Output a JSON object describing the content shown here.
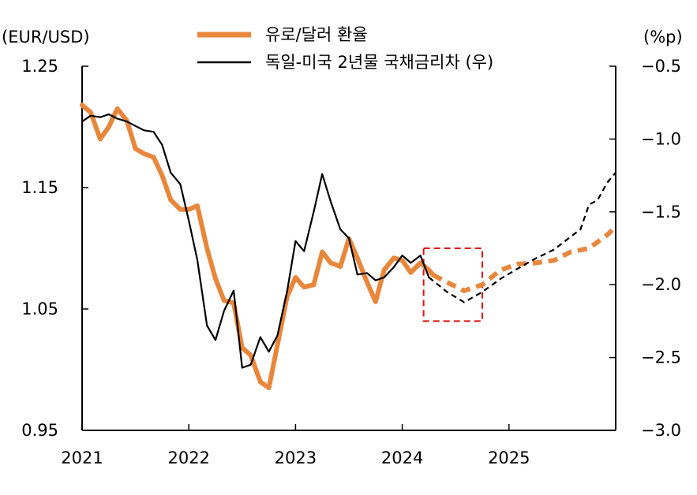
{
  "chart_data": {
    "type": "line",
    "left_axis_unit": "(EUR/USD)",
    "right_axis_unit": "(%p)",
    "left_ticks": [
      "1.25",
      "1.15",
      "1.05",
      "0.95"
    ],
    "right_ticks": [
      "-0.5",
      "-1.0",
      "-1.5",
      "-2.0",
      "-2.5",
      "-3.0"
    ],
    "x_ticks": [
      "2021",
      "2022",
      "2023",
      "2024",
      "2025"
    ],
    "ylim_left": [
      0.95,
      1.25
    ],
    "ylim_right": [
      -3.0,
      -0.5
    ],
    "xlim": [
      2021.0,
      2026.0
    ],
    "series": [
      {
        "name": "유로/달러 환율",
        "axis": "left",
        "color": "#e8873c",
        "actual_x": [
          2021.0,
          2021.08,
          2021.17,
          2021.25,
          2021.33,
          2021.42,
          2021.5,
          2021.58,
          2021.67,
          2021.75,
          2021.83,
          2021.92,
          2022.0,
          2022.08,
          2022.17,
          2022.25,
          2022.33,
          2022.42,
          2022.5,
          2022.58,
          2022.67,
          2022.75,
          2022.83,
          2022.92,
          2023.0,
          2023.08,
          2023.17,
          2023.25,
          2023.33,
          2023.42,
          2023.5,
          2023.58,
          2023.67,
          2023.75,
          2023.83,
          2023.92,
          2024.0,
          2024.08,
          2024.17,
          2024.25,
          2024.29
        ],
        "actual_y": [
          1.218,
          1.212,
          1.19,
          1.2,
          1.215,
          1.205,
          1.182,
          1.178,
          1.175,
          1.16,
          1.14,
          1.132,
          1.132,
          1.135,
          1.1,
          1.075,
          1.057,
          1.055,
          1.018,
          1.012,
          0.99,
          0.985,
          1.02,
          1.06,
          1.076,
          1.068,
          1.07,
          1.097,
          1.088,
          1.085,
          1.108,
          1.092,
          1.072,
          1.056,
          1.082,
          1.092,
          1.09,
          1.08,
          1.088,
          1.082,
          1.078
        ],
        "forecast_x": [
          2024.29,
          2024.42,
          2024.58,
          2024.75,
          2024.92,
          2025.08,
          2025.25,
          2025.42,
          2025.58,
          2025.75,
          2025.92,
          2026.0
        ],
        "forecast_y": [
          1.078,
          1.072,
          1.065,
          1.07,
          1.082,
          1.087,
          1.088,
          1.09,
          1.097,
          1.1,
          1.111,
          1.118
        ]
      },
      {
        "name": "독일-미국 2년물 국채금리차 (우)",
        "axis": "right",
        "color": "#000000",
        "actual_x": [
          2021.0,
          2021.08,
          2021.17,
          2021.25,
          2021.33,
          2021.42,
          2021.5,
          2021.58,
          2021.67,
          2021.75,
          2021.83,
          2021.92,
          2022.0,
          2022.08,
          2022.17,
          2022.25,
          2022.33,
          2022.42,
          2022.5,
          2022.58,
          2022.67,
          2022.75,
          2022.83,
          2022.92,
          2023.0,
          2023.08,
          2023.17,
          2023.25,
          2023.33,
          2023.42,
          2023.5,
          2023.58,
          2023.67,
          2023.75,
          2023.83,
          2023.92,
          2024.0,
          2024.08,
          2024.17,
          2024.25
        ],
        "actual_y": [
          -0.88,
          -0.84,
          -0.85,
          -0.83,
          -0.86,
          -0.88,
          -0.91,
          -0.94,
          -0.95,
          -1.04,
          -1.23,
          -1.31,
          -1.56,
          -1.83,
          -2.28,
          -2.38,
          -2.18,
          -2.04,
          -2.57,
          -2.55,
          -2.36,
          -2.46,
          -2.35,
          -2.05,
          -1.7,
          -1.77,
          -1.5,
          -1.24,
          -1.43,
          -1.62,
          -1.68,
          -1.93,
          -1.92,
          -1.97,
          -1.95,
          -1.88,
          -1.8,
          -1.85,
          -1.8,
          -1.95
        ],
        "forecast_x": [
          2024.25,
          2024.42,
          2024.58,
          2024.75,
          2024.92,
          2025.08,
          2025.25,
          2025.42,
          2025.58,
          2025.67,
          2025.75,
          2025.83,
          2025.92,
          2026.0
        ],
        "forecast_y": [
          -1.95,
          -2.05,
          -2.12,
          -2.05,
          -1.96,
          -1.89,
          -1.82,
          -1.76,
          -1.67,
          -1.62,
          -1.45,
          -1.42,
          -1.3,
          -1.23
        ]
      }
    ],
    "highlight_box": {
      "x": [
        2024.2,
        2024.75
      ],
      "y_left": [
        1.04,
        1.1
      ],
      "color": "#e01010"
    }
  }
}
